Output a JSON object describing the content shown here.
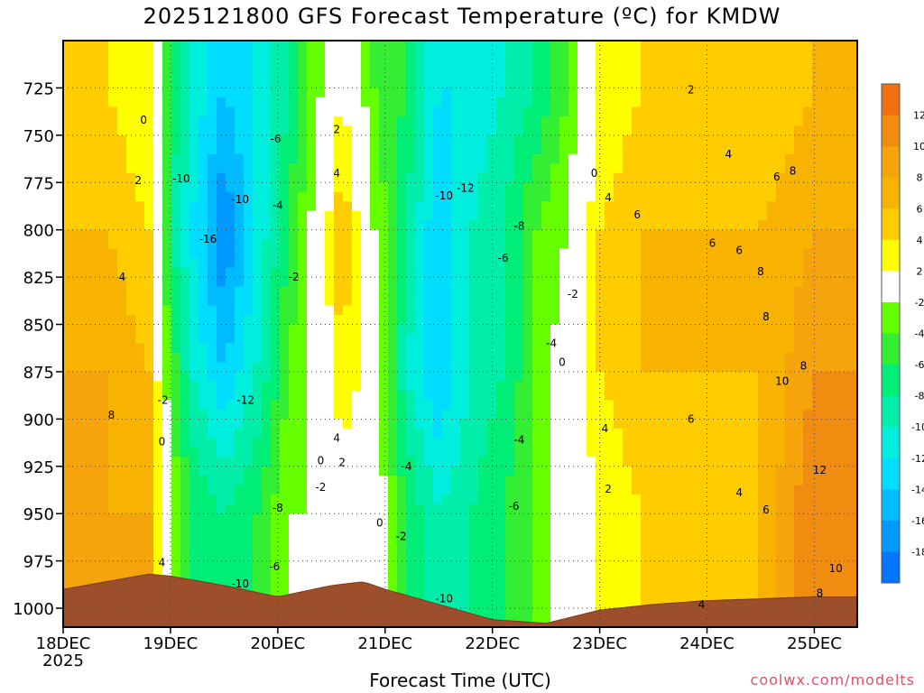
{
  "header": {
    "title": "2025121800 GFS Forecast Temperature (ºC) for KMDW"
  },
  "footer": {
    "xlabel": "Forecast Time (UTC)",
    "credit": "coolwx.com/modelts"
  },
  "chart_data": {
    "type": "heatmap",
    "title": "2025121800 GFS Forecast Temperature (ºC) for KMDW",
    "xlabel": "Forecast Time (UTC)",
    "ylabel": "",
    "x_range_days": [
      0,
      7.4
    ],
    "y_range_mb": [
      700,
      1010
    ],
    "y_inverted": true,
    "x_ticks": [
      {
        "day": 0,
        "label": "18DEC",
        "sub": "2025"
      },
      {
        "day": 1,
        "label": "19DEC",
        "sub": ""
      },
      {
        "day": 2,
        "label": "20DEC",
        "sub": ""
      },
      {
        "day": 3,
        "label": "21DEC",
        "sub": ""
      },
      {
        "day": 4,
        "label": "22DEC",
        "sub": ""
      },
      {
        "day": 5,
        "label": "23DEC",
        "sub": ""
      },
      {
        "day": 6,
        "label": "24DEC",
        "sub": ""
      },
      {
        "day": 7,
        "label": "25DEC",
        "sub": ""
      }
    ],
    "y_ticks": [
      725,
      750,
      775,
      800,
      825,
      850,
      875,
      900,
      925,
      950,
      975,
      1000
    ],
    "colorbar": {
      "labels": [
        12,
        10,
        8,
        6,
        4,
        2,
        -2,
        -4,
        -6,
        -8,
        -10,
        -12,
        -14,
        -16,
        -18
      ],
      "bins": [
        {
          "lo": 12,
          "hi": 14,
          "color": "#f07010"
        },
        {
          "lo": 10,
          "hi": 12,
          "color": "#f08c10"
        },
        {
          "lo": 8,
          "hi": 10,
          "color": "#f5a40c"
        },
        {
          "lo": 6,
          "hi": 8,
          "color": "#f8b300"
        },
        {
          "lo": 4,
          "hi": 6,
          "color": "#ffcc00"
        },
        {
          "lo": 2,
          "hi": 4,
          "color": "#ffff00"
        },
        {
          "lo": -2,
          "hi": 2,
          "color": "#ffffff"
        },
        {
          "lo": -4,
          "hi": -2,
          "color": "#66ff00"
        },
        {
          "lo": -6,
          "hi": -4,
          "color": "#33ee33"
        },
        {
          "lo": -8,
          "hi": -6,
          "color": "#00ee77"
        },
        {
          "lo": -10,
          "hi": -8,
          "color": "#00eeaa"
        },
        {
          "lo": -12,
          "hi": -10,
          "color": "#00eedd"
        },
        {
          "lo": -14,
          "hi": -12,
          "color": "#00ddff"
        },
        {
          "lo": -16,
          "hi": -14,
          "color": "#00bbff"
        },
        {
          "lo": -18,
          "hi": -16,
          "color": "#0099ff"
        },
        {
          "lo": -20,
          "hi": -18,
          "color": "#0077ff"
        }
      ]
    },
    "temperature_profile": [
      {
        "day": 0.0,
        "temps": [
          4,
          6,
          8,
          8
        ]
      },
      {
        "day": 0.4,
        "temps": [
          4,
          6,
          8,
          8
        ]
      },
      {
        "day": 0.8,
        "temps": [
          2,
          4,
          6,
          8
        ]
      },
      {
        "day": 1.0,
        "temps": [
          -6,
          -8,
          -4,
          -2
        ]
      },
      {
        "day": 1.2,
        "temps": [
          -10,
          -12,
          -10,
          -6
        ]
      },
      {
        "day": 1.5,
        "temps": [
          -14,
          -18,
          -14,
          -8
        ]
      },
      {
        "day": 1.8,
        "temps": [
          -12,
          -12,
          -10,
          -6
        ]
      },
      {
        "day": 2.1,
        "temps": [
          -8,
          -6,
          -4,
          -2
        ]
      },
      {
        "day": 2.4,
        "temps": [
          -2,
          0,
          0,
          -2
        ]
      },
      {
        "day": 2.6,
        "temps": [
          2,
          6,
          4,
          0
        ]
      },
      {
        "day": 2.9,
        "temps": [
          -4,
          -2,
          0,
          0
        ]
      },
      {
        "day": 3.2,
        "temps": [
          -6,
          -8,
          -10,
          -6
        ]
      },
      {
        "day": 3.5,
        "temps": [
          -12,
          -14,
          -14,
          -10
        ]
      },
      {
        "day": 3.8,
        "temps": [
          -12,
          -10,
          -10,
          -8
        ]
      },
      {
        "day": 4.1,
        "temps": [
          -10,
          -8,
          -8,
          -6
        ]
      },
      {
        "day": 4.4,
        "temps": [
          -8,
          -4,
          -4,
          -4
        ]
      },
      {
        "day": 4.7,
        "temps": [
          -4,
          -2,
          0,
          0
        ]
      },
      {
        "day": 5.0,
        "temps": [
          2,
          4,
          4,
          2
        ]
      },
      {
        "day": 5.4,
        "temps": [
          4,
          6,
          6,
          4
        ]
      },
      {
        "day": 6.0,
        "temps": [
          4,
          6,
          6,
          4
        ]
      },
      {
        "day": 6.5,
        "temps": [
          4,
          6,
          6,
          6
        ]
      },
      {
        "day": 7.0,
        "temps": [
          6,
          8,
          10,
          12
        ]
      },
      {
        "day": 7.4,
        "temps": [
          6,
          8,
          10,
          10
        ]
      }
    ],
    "profile_levels_mb": [
      725,
      800,
      875,
      950
    ],
    "surface_pressure": [
      {
        "day": 0.0,
        "mb": 990
      },
      {
        "day": 0.8,
        "mb": 982
      },
      {
        "day": 1.0,
        "mb": 983
      },
      {
        "day": 1.5,
        "mb": 988
      },
      {
        "day": 2.0,
        "mb": 994
      },
      {
        "day": 2.5,
        "mb": 988
      },
      {
        "day": 2.8,
        "mb": 986
      },
      {
        "day": 3.0,
        "mb": 990
      },
      {
        "day": 3.5,
        "mb": 998
      },
      {
        "day": 4.0,
        "mb": 1006
      },
      {
        "day": 4.5,
        "mb": 1008
      },
      {
        "day": 5.0,
        "mb": 1001
      },
      {
        "day": 5.5,
        "mb": 998
      },
      {
        "day": 6.0,
        "mb": 996
      },
      {
        "day": 7.0,
        "mb": 994
      },
      {
        "day": 7.4,
        "mb": 994
      }
    ],
    "contour_labels": [
      {
        "day": 0.75,
        "mb": 742,
        "text": "0"
      },
      {
        "day": 0.7,
        "mb": 774,
        "text": "2"
      },
      {
        "day": 0.55,
        "mb": 825,
        "text": "4"
      },
      {
        "day": 0.45,
        "mb": 898,
        "text": "8"
      },
      {
        "day": 0.93,
        "mb": 890,
        "text": "-2"
      },
      {
        "day": 0.92,
        "mb": 912,
        "text": "0"
      },
      {
        "day": 0.92,
        "mb": 976,
        "text": "4"
      },
      {
        "day": 1.1,
        "mb": 773,
        "text": "-10"
      },
      {
        "day": 1.35,
        "mb": 805,
        "text": "-16"
      },
      {
        "day": 1.65,
        "mb": 784,
        "text": "-10"
      },
      {
        "day": 1.7,
        "mb": 890,
        "text": "-12"
      },
      {
        "day": 1.65,
        "mb": 987,
        "text": "-10"
      },
      {
        "day": 1.98,
        "mb": 752,
        "text": "-6"
      },
      {
        "day": 2.0,
        "mb": 787,
        "text": "-4"
      },
      {
        "day": 2.15,
        "mb": 825,
        "text": "-2"
      },
      {
        "day": 1.97,
        "mb": 978,
        "text": "-6"
      },
      {
        "day": 2.0,
        "mb": 947,
        "text": "-8"
      },
      {
        "day": 2.55,
        "mb": 747,
        "text": "2"
      },
      {
        "day": 2.55,
        "mb": 770,
        "text": "4"
      },
      {
        "day": 2.55,
        "mb": 910,
        "text": "4"
      },
      {
        "day": 2.4,
        "mb": 922,
        "text": "0"
      },
      {
        "day": 2.6,
        "mb": 923,
        "text": "2"
      },
      {
        "day": 2.4,
        "mb": 936,
        "text": "-2"
      },
      {
        "day": 2.95,
        "mb": 955,
        "text": "0"
      },
      {
        "day": 3.15,
        "mb": 962,
        "text": "-2"
      },
      {
        "day": 3.2,
        "mb": 925,
        "text": "-4"
      },
      {
        "day": 3.55,
        "mb": 782,
        "text": "-10"
      },
      {
        "day": 3.75,
        "mb": 778,
        "text": "-12"
      },
      {
        "day": 3.55,
        "mb": 995,
        "text": "-10"
      },
      {
        "day": 4.1,
        "mb": 815,
        "text": "-6"
      },
      {
        "day": 4.25,
        "mb": 798,
        "text": "-8"
      },
      {
        "day": 4.2,
        "mb": 946,
        "text": "-6"
      },
      {
        "day": 4.25,
        "mb": 911,
        "text": "-4"
      },
      {
        "day": 4.55,
        "mb": 860,
        "text": "-4"
      },
      {
        "day": 4.65,
        "mb": 870,
        "text": "0"
      },
      {
        "day": 4.75,
        "mb": 834,
        "text": "-2"
      },
      {
        "day": 4.95,
        "mb": 770,
        "text": "0"
      },
      {
        "day": 5.08,
        "mb": 783,
        "text": "4"
      },
      {
        "day": 5.05,
        "mb": 905,
        "text": "4"
      },
      {
        "day": 5.08,
        "mb": 937,
        "text": "2"
      },
      {
        "day": 5.35,
        "mb": 792,
        "text": "6"
      },
      {
        "day": 5.85,
        "mb": 726,
        "text": "2"
      },
      {
        "day": 6.2,
        "mb": 760,
        "text": "4"
      },
      {
        "day": 6.05,
        "mb": 807,
        "text": "6"
      },
      {
        "day": 6.3,
        "mb": 811,
        "text": "6"
      },
      {
        "day": 5.85,
        "mb": 900,
        "text": "6"
      },
      {
        "day": 6.3,
        "mb": 939,
        "text": "4"
      },
      {
        "day": 5.95,
        "mb": 998,
        "text": "4"
      },
      {
        "day": 6.65,
        "mb": 772,
        "text": "6"
      },
      {
        "day": 6.8,
        "mb": 769,
        "text": "8"
      },
      {
        "day": 6.5,
        "mb": 822,
        "text": "8"
      },
      {
        "day": 6.55,
        "mb": 846,
        "text": "8"
      },
      {
        "day": 6.7,
        "mb": 880,
        "text": "10"
      },
      {
        "day": 6.9,
        "mb": 872,
        "text": "8"
      },
      {
        "day": 6.55,
        "mb": 948,
        "text": "6"
      },
      {
        "day": 7.05,
        "mb": 927,
        "text": "12"
      },
      {
        "day": 7.2,
        "mb": 979,
        "text": "10"
      },
      {
        "day": 7.05,
        "mb": 992,
        "text": "8"
      }
    ]
  }
}
